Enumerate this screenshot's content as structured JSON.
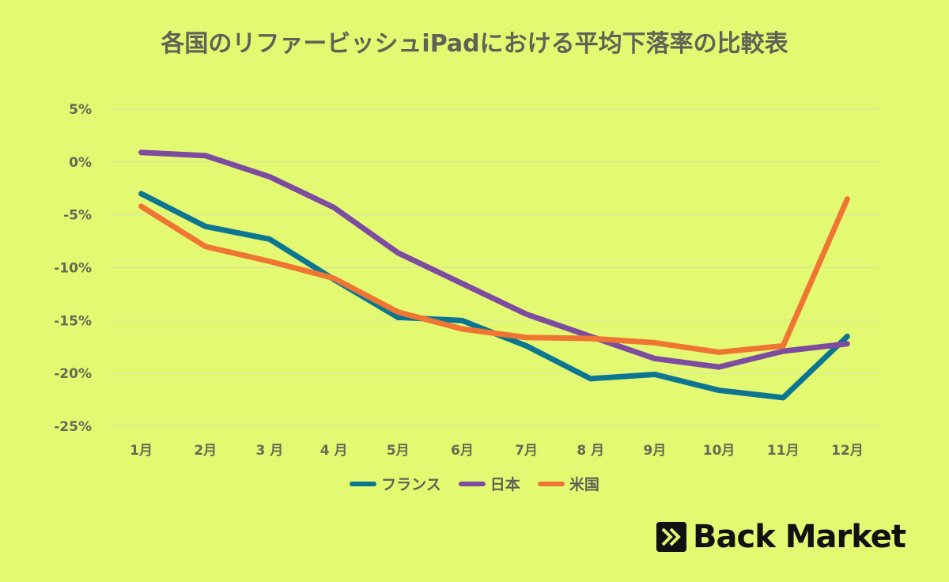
{
  "chart_data": {
    "type": "line",
    "title": "各国のリファービッシュiPadにおける平均下落率の比較表",
    "xlabel": "",
    "ylabel": "",
    "categories": [
      "1月",
      "2月",
      "3 月",
      "4 月",
      "5月",
      "6月",
      "7月",
      "8 月",
      "9月",
      "10月",
      "11月",
      "12月"
    ],
    "ylim": [
      -25,
      5
    ],
    "yticks": [
      5,
      0,
      -5,
      -10,
      -15,
      -20,
      -25
    ],
    "ytick_labels": [
      "5%",
      "0%",
      "-5%",
      "-10%",
      "-15%",
      "-20%",
      "-25%"
    ],
    "grid": true,
    "legend": "bottom",
    "series": [
      {
        "name": "フランス",
        "color": "#0b7592",
        "values": [
          -3.0,
          -6.1,
          -7.3,
          -11.1,
          -14.7,
          -15.0,
          -17.4,
          -20.5,
          -20.1,
          -21.6,
          -22.3,
          -16.5
        ]
      },
      {
        "name": "日本",
        "color": "#7d4ba0",
        "values": [
          0.9,
          0.6,
          -1.4,
          -4.3,
          -8.6,
          -11.5,
          -14.4,
          -16.5,
          -18.6,
          -19.4,
          -17.9,
          -17.2
        ]
      },
      {
        "name": "米国",
        "color": "#ef7533",
        "values": [
          -4.2,
          -8.0,
          -9.4,
          -11.0,
          -14.2,
          -15.8,
          -16.6,
          -16.7,
          -17.1,
          -18.0,
          -17.4,
          -3.5
        ]
      }
    ]
  },
  "logo": {
    "text": "Back Market"
  },
  "colors": {
    "background": "#e3f971",
    "text": "#5f6355"
  }
}
